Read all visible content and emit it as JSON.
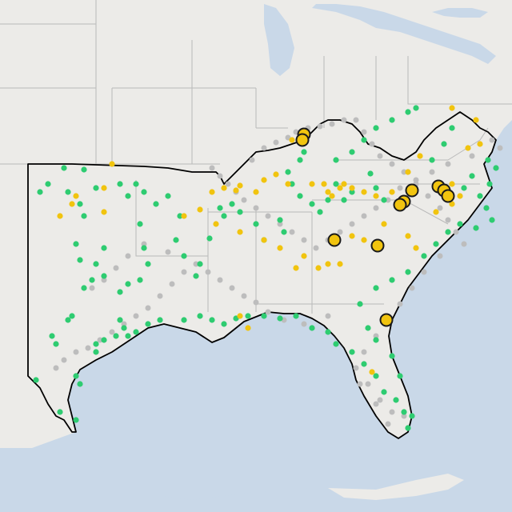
{
  "map": {
    "colors": {
      "water": "#c8d7e8",
      "land": "#ecebe8",
      "state_border": "#b9b9b9",
      "region_outline": "#000000",
      "green": "#2ecc71",
      "yellow": "#f1c40f",
      "gray": "#bdbdbd",
      "marker_stroke": "#1a1a1a"
    },
    "legend": [],
    "points": {
      "green": [
        [
          610,
          200
        ],
        [
          620,
          210
        ],
        [
          612,
          230
        ],
        [
          600,
          245
        ],
        [
          608,
          260
        ],
        [
          615,
          275
        ],
        [
          595,
          285
        ],
        [
          575,
          280
        ],
        [
          580,
          235
        ],
        [
          590,
          220
        ],
        [
          565,
          160
        ],
        [
          555,
          180
        ],
        [
          540,
          200
        ],
        [
          463,
          217
        ],
        [
          470,
          235
        ],
        [
          480,
          250
        ],
        [
          430,
          250
        ],
        [
          440,
          240
        ],
        [
          420,
          230
        ],
        [
          410,
          250
        ],
        [
          400,
          265
        ],
        [
          390,
          255
        ],
        [
          375,
          245
        ],
        [
          365,
          230
        ],
        [
          360,
          215
        ],
        [
          375,
          200
        ],
        [
          380,
          190
        ],
        [
          350,
          275
        ],
        [
          355,
          290
        ],
        [
          330,
          300
        ],
        [
          320,
          280
        ],
        [
          300,
          265
        ],
        [
          290,
          255
        ],
        [
          275,
          260
        ],
        [
          280,
          270
        ],
        [
          262,
          298
        ],
        [
          250,
          330
        ],
        [
          245,
          345
        ],
        [
          230,
          320
        ],
        [
          220,
          300
        ],
        [
          225,
          270
        ],
        [
          210,
          245
        ],
        [
          195,
          255
        ],
        [
          180,
          240
        ],
        [
          170,
          230
        ],
        [
          160,
          245
        ],
        [
          175,
          280
        ],
        [
          180,
          310
        ],
        [
          185,
          330
        ],
        [
          175,
          350
        ],
        [
          160,
          355
        ],
        [
          150,
          365
        ],
        [
          130,
          345
        ],
        [
          115,
          350
        ],
        [
          105,
          360
        ],
        [
          100,
          325
        ],
        [
          95,
          305
        ],
        [
          120,
          330
        ],
        [
          130,
          310
        ],
        [
          105,
          270
        ],
        [
          100,
          255
        ],
        [
          85,
          240
        ],
        [
          60,
          230
        ],
        [
          50,
          240
        ],
        [
          80,
          210
        ],
        [
          105,
          212
        ],
        [
          120,
          235
        ],
        [
          150,
          230
        ],
        [
          150,
          400
        ],
        [
          155,
          410
        ],
        [
          160,
          420
        ],
        [
          145,
          420
        ],
        [
          130,
          425
        ],
        [
          120,
          430
        ],
        [
          170,
          415
        ],
        [
          185,
          405
        ],
        [
          200,
          400
        ],
        [
          230,
          400
        ],
        [
          250,
          395
        ],
        [
          265,
          400
        ],
        [
          280,
          405
        ],
        [
          295,
          398
        ],
        [
          310,
          395
        ],
        [
          330,
          395
        ],
        [
          350,
          398
        ],
        [
          370,
          395
        ],
        [
          390,
          410
        ],
        [
          410,
          415
        ],
        [
          420,
          430
        ],
        [
          440,
          440
        ],
        [
          455,
          455
        ],
        [
          470,
          470
        ],
        [
          480,
          490
        ],
        [
          495,
          500
        ],
        [
          505,
          515
        ],
        [
          510,
          535
        ],
        [
          515,
          520
        ],
        [
          500,
          470
        ],
        [
          490,
          445
        ],
        [
          470,
          425
        ],
        [
          460,
          410
        ],
        [
          450,
          380
        ],
        [
          470,
          360
        ],
        [
          490,
          350
        ],
        [
          510,
          340
        ],
        [
          530,
          320
        ],
        [
          545,
          305
        ],
        [
          560,
          290
        ],
        [
          70,
          430
        ],
        [
          65,
          420
        ],
        [
          45,
          475
        ],
        [
          75,
          515
        ],
        [
          95,
          525
        ],
        [
          100,
          480
        ],
        [
          95,
          470
        ],
        [
          120,
          440
        ],
        [
          90,
          395
        ],
        [
          85,
          400
        ],
        [
          420,
          200
        ],
        [
          440,
          190
        ],
        [
          455,
          175
        ],
        [
          470,
          160
        ],
        [
          490,
          150
        ],
        [
          510,
          140
        ],
        [
          520,
          135
        ]
      ],
      "yellow": [
        [
          565,
          135
        ],
        [
          595,
          150
        ],
        [
          585,
          185
        ],
        [
          600,
          180
        ],
        [
          525,
          195
        ],
        [
          510,
          215
        ],
        [
          490,
          240
        ],
        [
          470,
          245
        ],
        [
          455,
          240
        ],
        [
          440,
          235
        ],
        [
          425,
          235
        ],
        [
          410,
          240
        ],
        [
          405,
          230
        ],
        [
          390,
          230
        ],
        [
          360,
          230
        ],
        [
          345,
          218
        ],
        [
          330,
          225
        ],
        [
          320,
          240
        ],
        [
          300,
          232
        ],
        [
          295,
          238
        ],
        [
          280,
          235
        ],
        [
          265,
          240
        ],
        [
          250,
          262
        ],
        [
          230,
          270
        ],
        [
          270,
          280
        ],
        [
          300,
          290
        ],
        [
          330,
          300
        ],
        [
          350,
          310
        ],
        [
          380,
          320
        ],
        [
          410,
          330
        ],
        [
          425,
          330
        ],
        [
          440,
          295
        ],
        [
          455,
          300
        ],
        [
          480,
          280
        ],
        [
          510,
          295
        ],
        [
          520,
          310
        ],
        [
          545,
          265
        ],
        [
          565,
          255
        ],
        [
          575,
          245
        ],
        [
          565,
          230
        ],
        [
          140,
          205
        ],
        [
          130,
          235
        ],
        [
          95,
          245
        ],
        [
          90,
          255
        ],
        [
          75,
          270
        ],
        [
          130,
          265
        ],
        [
          300,
          395
        ],
        [
          310,
          410
        ],
        [
          465,
          465
        ],
        [
          430,
          230
        ],
        [
          415,
          245
        ],
        [
          370,
          335
        ],
        [
          398,
          335
        ],
        [
          365,
          175
        ]
      ],
      "gray": [
        [
          615,
          175
        ],
        [
          625,
          185
        ],
        [
          590,
          195
        ],
        [
          560,
          205
        ],
        [
          540,
          215
        ],
        [
          520,
          225
        ],
        [
          500,
          235
        ],
        [
          485,
          250
        ],
        [
          470,
          260
        ],
        [
          455,
          270
        ],
        [
          440,
          280
        ],
        [
          425,
          290
        ],
        [
          410,
          300
        ],
        [
          395,
          310
        ],
        [
          380,
          300
        ],
        [
          365,
          290
        ],
        [
          350,
          280
        ],
        [
          335,
          270
        ],
        [
          320,
          260
        ],
        [
          305,
          250
        ],
        [
          295,
          240
        ],
        [
          285,
          230
        ],
        [
          275,
          220
        ],
        [
          265,
          210
        ],
        [
          315,
          200
        ],
        [
          330,
          185
        ],
        [
          345,
          178
        ],
        [
          360,
          172
        ],
        [
          370,
          165
        ],
        [
          385,
          160
        ],
        [
          400,
          158
        ],
        [
          415,
          155
        ],
        [
          430,
          150
        ],
        [
          445,
          150
        ],
        [
          455,
          165
        ],
        [
          465,
          180
        ],
        [
          475,
          195
        ],
        [
          490,
          205
        ],
        [
          505,
          215
        ],
        [
          520,
          230
        ],
        [
          535,
          245
        ],
        [
          550,
          260
        ],
        [
          560,
          275
        ],
        [
          570,
          290
        ],
        [
          580,
          305
        ],
        [
          550,
          320
        ],
        [
          530,
          340
        ],
        [
          515,
          360
        ],
        [
          500,
          380
        ],
        [
          485,
          400
        ],
        [
          470,
          420
        ],
        [
          455,
          440
        ],
        [
          445,
          460
        ],
        [
          460,
          480
        ],
        [
          475,
          500
        ],
        [
          490,
          515
        ],
        [
          505,
          520
        ],
        [
          485,
          530
        ],
        [
          470,
          505
        ],
        [
          450,
          480
        ],
        [
          410,
          395
        ],
        [
          380,
          405
        ],
        [
          355,
          400
        ],
        [
          335,
          390
        ],
        [
          320,
          378
        ],
        [
          305,
          370
        ],
        [
          290,
          360
        ],
        [
          275,
          350
        ],
        [
          260,
          340
        ],
        [
          245,
          330
        ],
        [
          230,
          340
        ],
        [
          215,
          355
        ],
        [
          200,
          370
        ],
        [
          185,
          385
        ],
        [
          170,
          395
        ],
        [
          155,
          405
        ],
        [
          140,
          415
        ],
        [
          125,
          425
        ],
        [
          110,
          435
        ],
        [
          95,
          440
        ],
        [
          80,
          450
        ],
        [
          70,
          460
        ],
        [
          210,
          315
        ],
        [
          180,
          305
        ],
        [
          160,
          320
        ],
        [
          145,
          335
        ],
        [
          130,
          350
        ],
        [
          115,
          360
        ]
      ],
      "yellow_large": [
        [
          380,
          168
        ],
        [
          378,
          175
        ],
        [
          548,
          233
        ],
        [
          555,
          238
        ],
        [
          560,
          245
        ],
        [
          515,
          238
        ],
        [
          505,
          252
        ],
        [
          500,
          256
        ],
        [
          418,
          300
        ],
        [
          472,
          307
        ],
        [
          483,
          400
        ]
      ]
    }
  }
}
